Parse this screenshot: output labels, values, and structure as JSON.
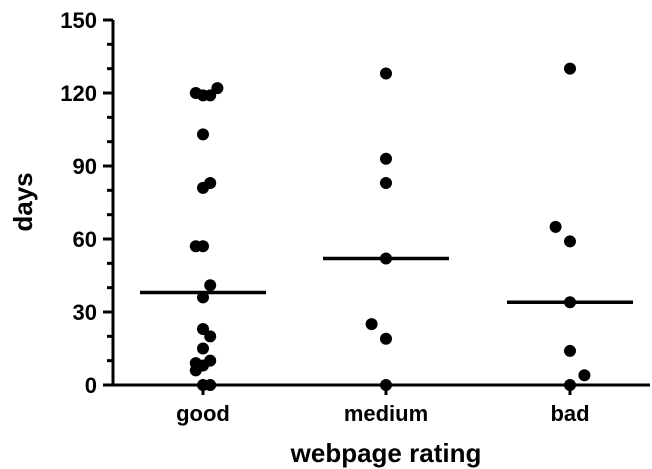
{
  "chart_data": {
    "type": "scatter",
    "xlabel": "webpage rating",
    "ylabel": "days",
    "categories": [
      "good",
      "medium",
      "bad"
    ],
    "ylim": [
      0,
      150
    ],
    "yticks": [
      0,
      30,
      60,
      90,
      120,
      150
    ],
    "yminor_step": 10,
    "grid": false,
    "colors": {
      "points": "#000000",
      "median": "#000000",
      "axis": "#000000"
    },
    "series": [
      {
        "category": "good",
        "median": 38,
        "points": [
          {
            "dx": -0.3,
            "y": 120
          },
          {
            "dx": 0.0,
            "y": 119
          },
          {
            "dx": 0.3,
            "y": 119
          },
          {
            "dx": 0.6,
            "y": 122
          },
          {
            "dx": 0.0,
            "y": 103
          },
          {
            "dx": 0.0,
            "y": 81
          },
          {
            "dx": 0.3,
            "y": 83
          },
          {
            "dx": -0.3,
            "y": 57
          },
          {
            "dx": 0.0,
            "y": 57
          },
          {
            "dx": 0.3,
            "y": 41
          },
          {
            "dx": 0.0,
            "y": 36
          },
          {
            "dx": 0.0,
            "y": 23
          },
          {
            "dx": 0.3,
            "y": 20
          },
          {
            "dx": 0.0,
            "y": 15
          },
          {
            "dx": -0.3,
            "y": 9
          },
          {
            "dx": 0.3,
            "y": 10
          },
          {
            "dx": 0.0,
            "y": 8
          },
          {
            "dx": -0.3,
            "y": 6
          },
          {
            "dx": 0.0,
            "y": 0
          },
          {
            "dx": 0.3,
            "y": 0
          }
        ]
      },
      {
        "category": "medium",
        "median": 52,
        "points": [
          {
            "dx": 0.0,
            "y": 128
          },
          {
            "dx": 0.0,
            "y": 93
          },
          {
            "dx": 0.0,
            "y": 83
          },
          {
            "dx": 0.0,
            "y": 52
          },
          {
            "dx": -0.6,
            "y": 25
          },
          {
            "dx": 0.0,
            "y": 19
          },
          {
            "dx": 0.0,
            "y": 0
          }
        ]
      },
      {
        "category": "bad",
        "median": 34,
        "points": [
          {
            "dx": 0.0,
            "y": 130
          },
          {
            "dx": -0.6,
            "y": 65
          },
          {
            "dx": 0.0,
            "y": 59
          },
          {
            "dx": 0.0,
            "y": 34
          },
          {
            "dx": 0.0,
            "y": 14
          },
          {
            "dx": 0.0,
            "y": 0
          },
          {
            "dx": 0.6,
            "y": 4
          }
        ]
      }
    ]
  }
}
